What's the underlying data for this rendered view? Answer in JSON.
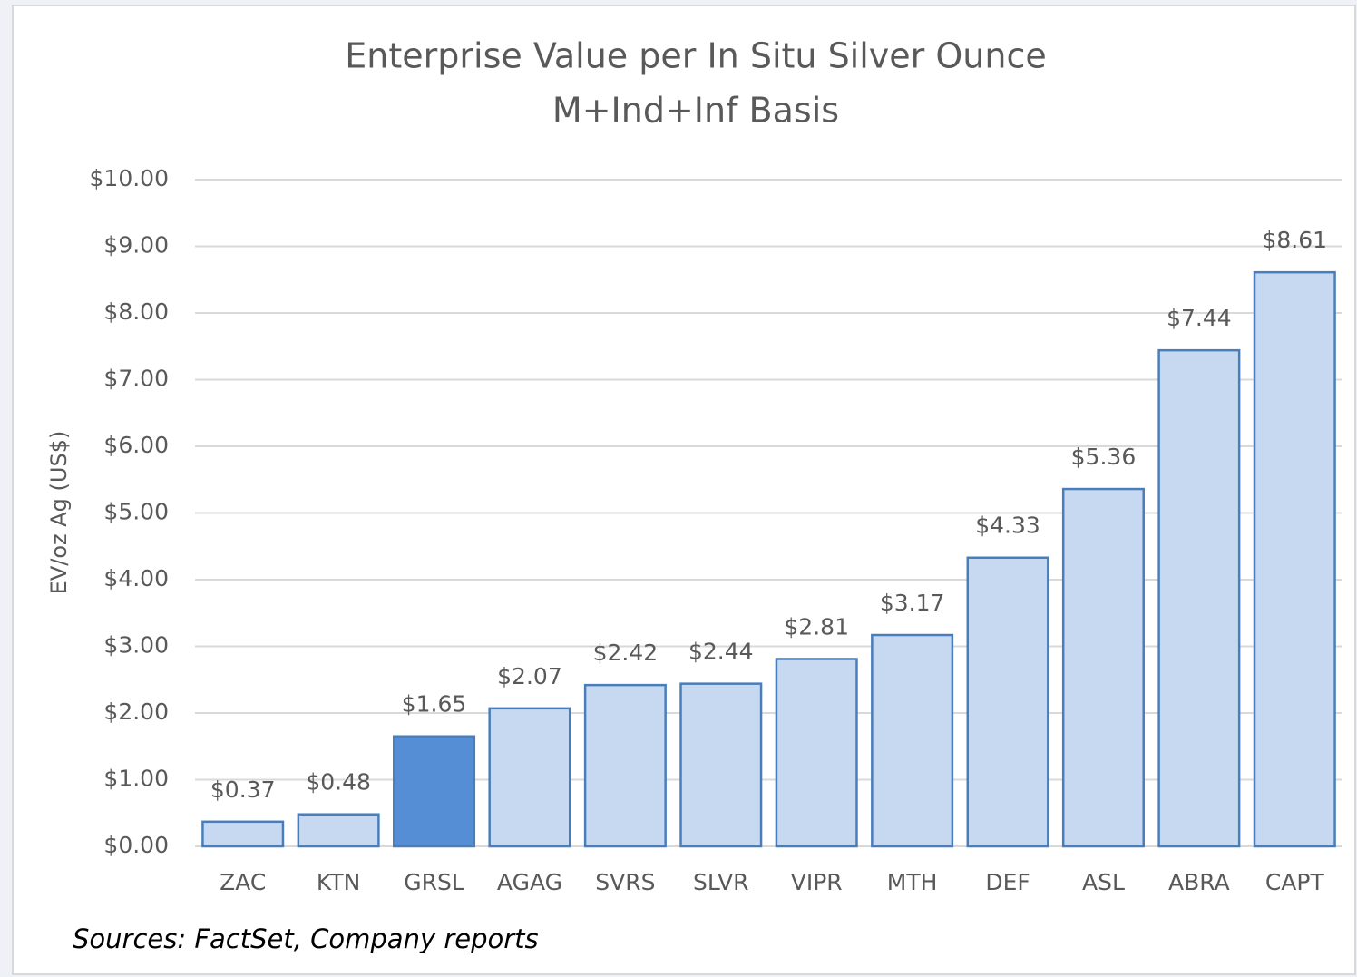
{
  "chart_data": {
    "type": "bar",
    "title": "Enterprise Value per In Situ Silver Ounce",
    "subtitle": "M+Ind+Inf Basis",
    "y_label": "EV/oz Ag (US$)",
    "source": "Sources: FactSet, Company reports",
    "categories": [
      "ZAC",
      "KTN",
      "GRSL",
      "AGAG",
      "SVRS",
      "SLVR",
      "VIPR",
      "MTH",
      "DEF",
      "ASL",
      "ABRA",
      "CAPT"
    ],
    "values": [
      0.37,
      0.48,
      1.65,
      2.07,
      2.42,
      2.44,
      2.81,
      3.17,
      4.33,
      5.36,
      7.44,
      8.61
    ],
    "value_labels": [
      "$0.37",
      "$0.48",
      "$1.65",
      "$2.07",
      "$2.42",
      "$2.44",
      "$2.81",
      "$3.17",
      "$4.33",
      "$5.36",
      "$7.44",
      "$8.61"
    ],
    "colors": [
      "#c6d9f1",
      "#c6d9f1",
      "#558ed5",
      "#c6d9f1",
      "#c6d9f1",
      "#c6d9f1",
      "#c6d9f1",
      "#c6d9f1",
      "#c6d9f1",
      "#c6d9f1",
      "#c6d9f1",
      "#c6d9f1"
    ],
    "edge_color": "#4a7ebb",
    "ylim": [
      0,
      10
    ],
    "yticks": [
      {
        "value": 0,
        "label": "$0.00"
      },
      {
        "value": 1,
        "label": "$1.00"
      },
      {
        "value": 2,
        "label": "$2.00"
      },
      {
        "value": 3,
        "label": "$3.00"
      },
      {
        "value": 4,
        "label": "$4.00"
      },
      {
        "value": 5,
        "label": "$5.00"
      },
      {
        "value": 6,
        "label": "$6.00"
      },
      {
        "value": 7,
        "label": "$7.00"
      },
      {
        "value": 8,
        "label": "$8.00"
      },
      {
        "value": 9,
        "label": "$9.00"
      },
      {
        "value": 10,
        "label": "$10.00"
      }
    ],
    "grid": true
  }
}
